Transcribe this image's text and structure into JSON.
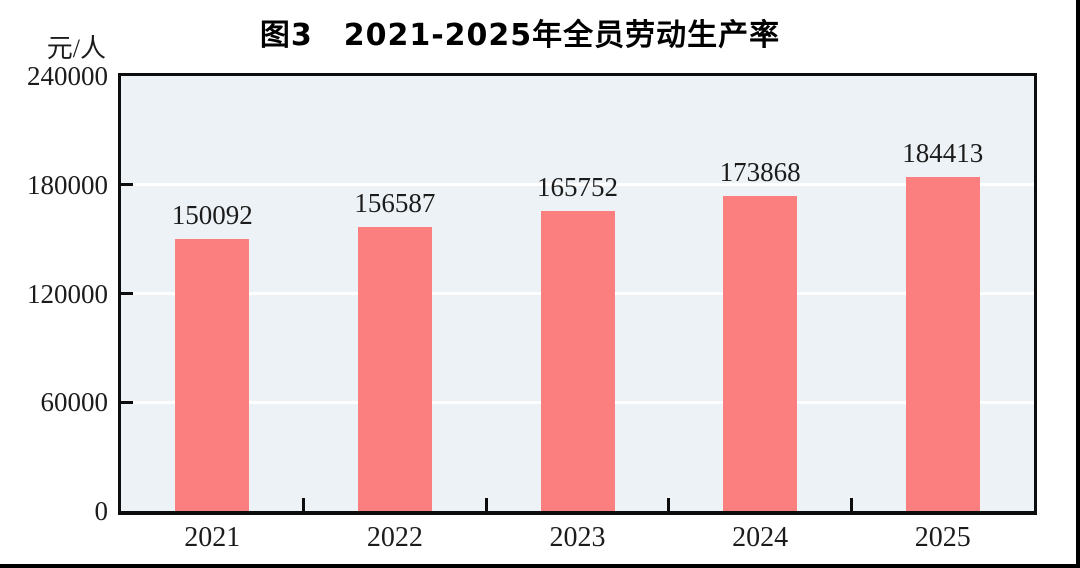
{
  "figure": {
    "title": "图3　2021-2025年全员劳动生产率",
    "unit_label": "元/人"
  },
  "chart_data": {
    "type": "bar",
    "title": "图3　2021-2025年全员劳动生产率",
    "categories": [
      "2021",
      "2022",
      "2023",
      "2024",
      "2025"
    ],
    "values": [
      150092,
      156587,
      165752,
      173868,
      184413
    ],
    "data_labels": [
      "150092",
      "156587",
      "165752",
      "173868",
      "184413"
    ],
    "xlabel": "",
    "ylabel": "元/人",
    "ylim": [
      0,
      240000
    ],
    "yticks": [
      0,
      60000,
      120000,
      180000,
      240000
    ],
    "grid": "horizontal-white-lines-at-yticks",
    "legend_position": "none",
    "colors": {
      "bar": "#fb7f7f",
      "plot_background": "#ecf2f5",
      "gridline": "#ffffff",
      "axis_border": "#0d0d0d",
      "text": "#1c1c1c",
      "page_background": "#ffffff",
      "frame_border": "#000000"
    }
  }
}
